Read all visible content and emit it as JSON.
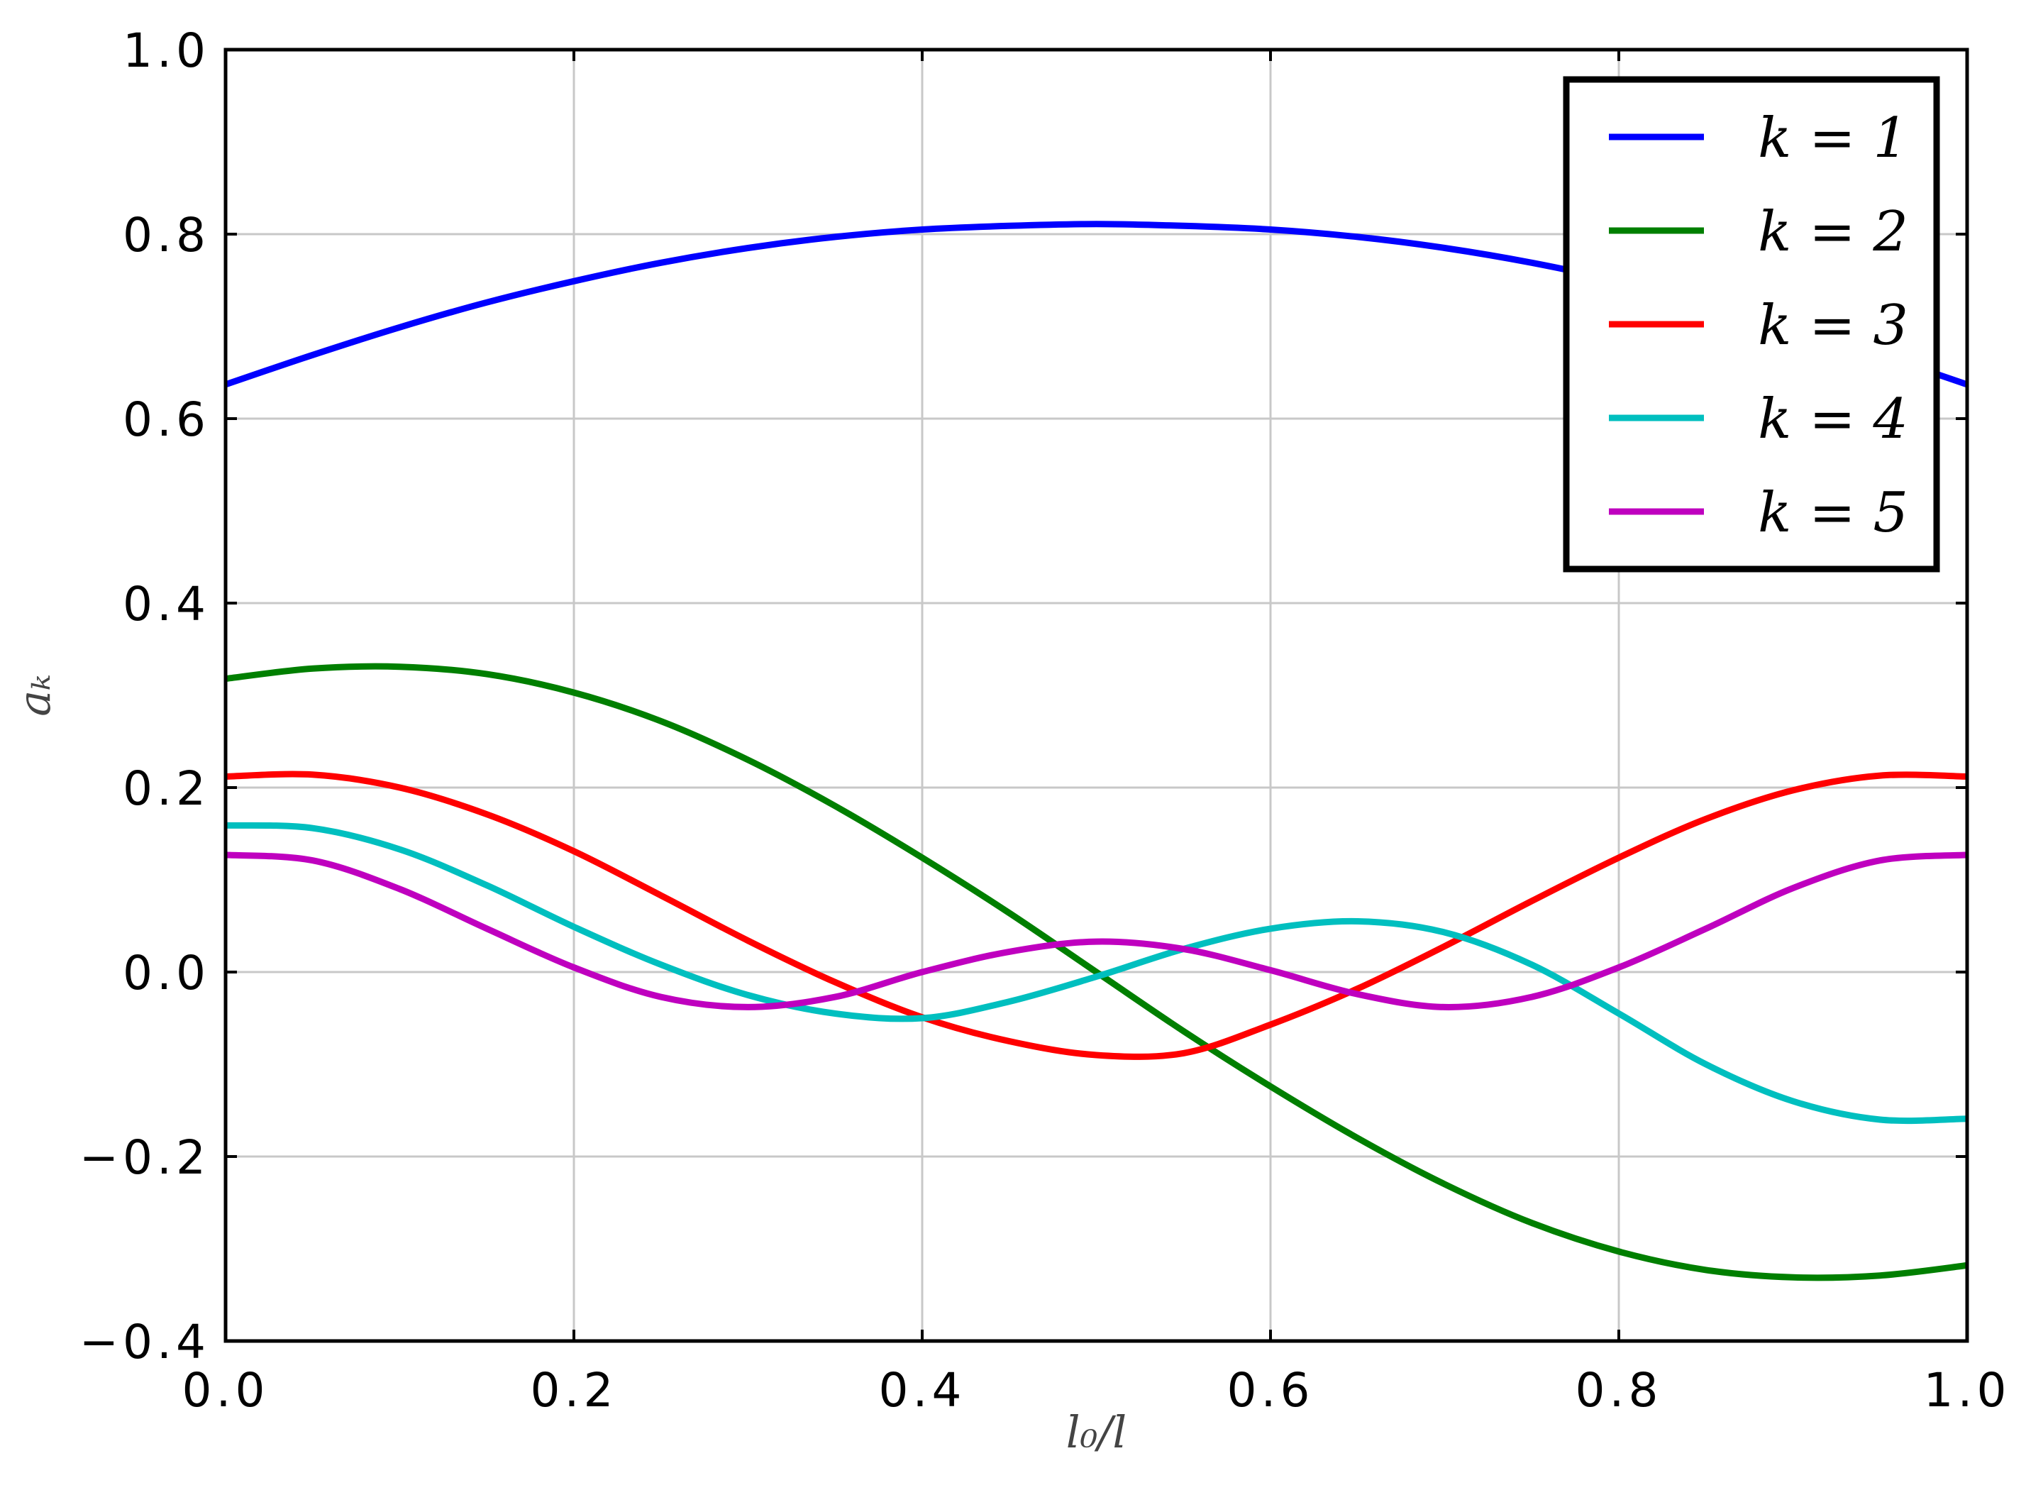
{
  "chart_data": {
    "type": "line",
    "title": "",
    "xlabel": "l₀/l",
    "ylabel": "aₖ",
    "xlim": [
      0.0,
      1.0
    ],
    "ylim": [
      -0.4,
      1.0
    ],
    "xticks": [
      "0.0",
      "0.2",
      "0.4",
      "0.6",
      "0.8",
      "1.0"
    ],
    "yticks": [
      "−0.4",
      "−0.2",
      "0.0",
      "0.2",
      "0.4",
      "0.6",
      "0.8",
      "1.0"
    ],
    "grid": true,
    "legend_position": "top-right",
    "x": [
      0.0,
      0.05,
      0.1,
      0.15,
      0.2,
      0.25,
      0.3,
      0.35,
      0.4,
      0.45,
      0.5,
      0.55,
      0.6,
      0.65,
      0.7,
      0.75,
      0.8,
      0.85,
      0.9,
      0.95,
      1.0
    ],
    "series": [
      {
        "name": "k = 1",
        "color": "#0000ff",
        "values": [
          0.637,
          0.669,
          0.699,
          0.726,
          0.749,
          0.769,
          0.785,
          0.797,
          0.805,
          0.809,
          0.811,
          0.809,
          0.805,
          0.797,
          0.785,
          0.769,
          0.749,
          0.726,
          0.699,
          0.669,
          0.637
        ]
      },
      {
        "name": "k = 2",
        "color": "#007f00",
        "values": [
          0.318,
          0.329,
          0.331,
          0.323,
          0.303,
          0.272,
          0.23,
          0.18,
          0.124,
          0.064,
          0.0,
          -0.064,
          -0.124,
          -0.18,
          -0.23,
          -0.272,
          -0.303,
          -0.323,
          -0.331,
          -0.329,
          -0.318
        ]
      },
      {
        "name": "k = 3",
        "color": "#ff0000",
        "values": [
          0.212,
          0.214,
          0.2,
          0.171,
          0.131,
          0.083,
          0.034,
          -0.011,
          -0.049,
          -0.075,
          -0.09,
          -0.088,
          -0.057,
          -0.018,
          0.028,
          0.077,
          0.124,
          0.166,
          0.197,
          0.213,
          0.212
        ]
      },
      {
        "name": "k = 4",
        "color": "#00bfbf",
        "values": [
          0.159,
          0.156,
          0.133,
          0.094,
          0.049,
          0.008,
          -0.025,
          -0.045,
          -0.05,
          -0.032,
          -0.005,
          0.025,
          0.047,
          0.055,
          0.043,
          0.008,
          -0.045,
          -0.1,
          -0.14,
          -0.16,
          -0.159
        ]
      },
      {
        "name": "k = 5",
        "color": "#bf00bf",
        "values": [
          0.127,
          0.121,
          0.09,
          0.047,
          0.005,
          -0.027,
          -0.038,
          -0.027,
          0.0,
          0.022,
          0.033,
          0.025,
          0.002,
          -0.024,
          -0.038,
          -0.027,
          0.005,
          0.047,
          0.091,
          0.121,
          0.127
        ]
      }
    ]
  }
}
